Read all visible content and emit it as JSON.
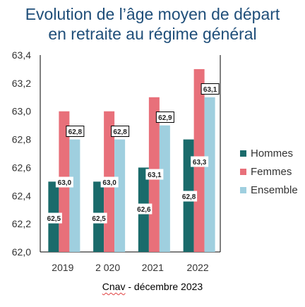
{
  "title_line1": "Evolution de l’âge moyen de départ",
  "title_line2": "en retraite au régime général",
  "source_org": "Cnav",
  "source_rest": " - décembre 2023",
  "colors": {
    "title": "#1f4e79",
    "hommes": "#1a6b6b",
    "femmes": "#e8707a",
    "ensemble": "#9fcfdf"
  },
  "chart_data": {
    "type": "bar",
    "categories": [
      "2019",
      "2 020",
      "2021",
      "2022"
    ],
    "ylim": [
      62.0,
      63.4
    ],
    "yticks": [
      "62,0",
      "62,2",
      "62,4",
      "62,6",
      "62,8",
      "63,0",
      "63,2",
      "63,4"
    ],
    "grid": false,
    "legend_position": "right",
    "series": [
      {
        "name": "Hommes",
        "values": [
          62.5,
          62.5,
          62.6,
          62.8
        ],
        "labels": [
          "62,5",
          "62,5",
          "62,6",
          "62,8"
        ]
      },
      {
        "name": "Femmes",
        "values": [
          63.0,
          63.0,
          63.1,
          63.3
        ],
        "labels": [
          "63,0",
          "63,0",
          "63,1",
          "63,3"
        ]
      },
      {
        "name": "Ensemble",
        "values": [
          62.8,
          62.8,
          62.9,
          63.1
        ],
        "labels": [
          "62,8",
          "62,8",
          "62,9",
          "63,1"
        ]
      }
    ]
  }
}
